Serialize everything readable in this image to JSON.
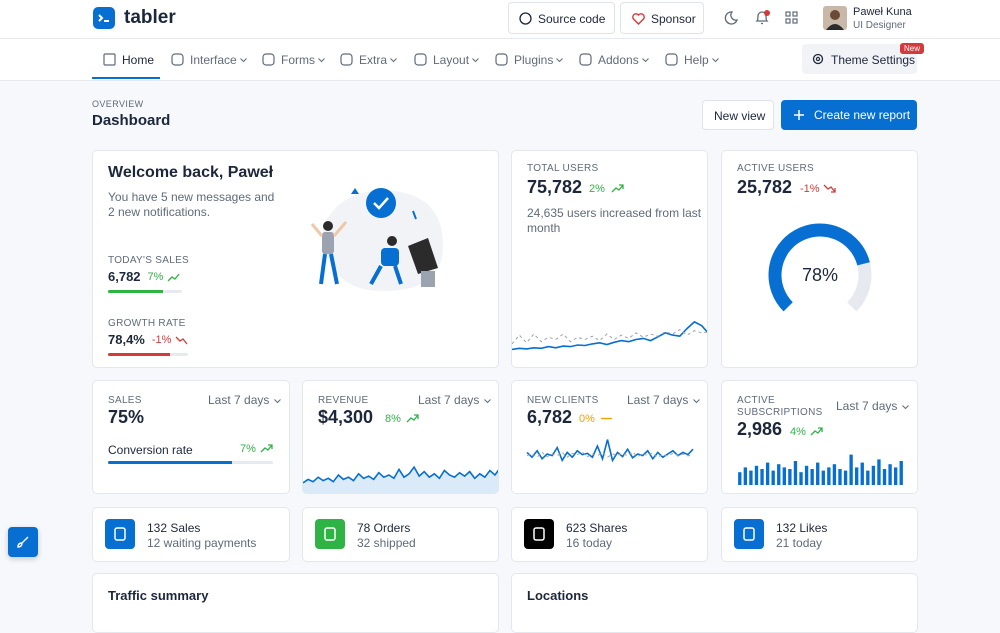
{
  "header": {
    "brand": "tabler",
    "source_code": "Source code",
    "sponsor": "Sponsor",
    "user": {
      "name": "Paweł Kuna",
      "role": "UI Designer"
    }
  },
  "nav": {
    "items": [
      "Home",
      "Interface",
      "Forms",
      "Extra",
      "Layout",
      "Plugins",
      "Addons",
      "Help"
    ],
    "theme_settings": "Theme Settings",
    "theme_badge": "New"
  },
  "page_header": {
    "pretitle": "OVERVIEW",
    "title": "Dashboard",
    "actions": [
      "New view",
      "Create new report"
    ]
  },
  "welcome": {
    "title": "Welcome back, Paweł",
    "text": "You have 5 new messages and 2 new notifications.",
    "metrics": [
      {
        "label": "TODAY'S SALES",
        "value": "6,782",
        "change": "7%",
        "progress": 74,
        "color": "#2fb344"
      },
      {
        "label": "GROWTH RATE",
        "value": "78,4%",
        "change": "-1%",
        "progress": 78,
        "color": "#d63939"
      }
    ]
  },
  "total_users": {
    "label": "TOTAL USERS",
    "value": "75,782",
    "change": "2%",
    "text": "24,635 users increased from last month",
    "chart": {
      "type": "line",
      "ylim": [
        0,
        100
      ],
      "series": [
        {
          "color": "#066fd1",
          "values": [
            12,
            14,
            13,
            15,
            14,
            17,
            15,
            18,
            17,
            20,
            19,
            22,
            24,
            21,
            25,
            28,
            26,
            30,
            32,
            28,
            35,
            42,
            38,
            36,
            50,
            62,
            55,
            40
          ]
        },
        {
          "color": "#9aa3af",
          "dashed": true,
          "values": [
            22,
            38,
            24,
            40,
            26,
            34,
            30,
            40,
            26,
            34,
            30,
            36,
            28,
            40,
            30,
            38,
            32,
            42,
            34,
            40,
            36,
            44,
            40,
            48,
            38,
            46,
            42,
            44
          ]
        }
      ]
    }
  },
  "active_users": {
    "label": "ACTIVE USERS",
    "value": "25,782",
    "change": "-1%",
    "gauge": {
      "value": 78,
      "label": "78%"
    }
  },
  "sales": {
    "label": "SALES",
    "period": "Last 7 days",
    "value": "75%",
    "progress_label": "Conversion rate",
    "change": "7%",
    "progress": 75
  },
  "revenue": {
    "label": "REVENUE",
    "period": "Last 7 days",
    "value": "$4,300",
    "change": "8%",
    "chart": {
      "type": "area",
      "ylim": [
        0,
        100
      ],
      "color": "#066fd1",
      "values": [
        20,
        26,
        22,
        30,
        24,
        28,
        22,
        34,
        26,
        30,
        24,
        36,
        28,
        32,
        26,
        38,
        30,
        34,
        28,
        44,
        30,
        36,
        48,
        32,
        40,
        30,
        36,
        28,
        42,
        34,
        30,
        38,
        32,
        40,
        28,
        36,
        30,
        42,
        34,
        46
      ]
    }
  },
  "new_clients": {
    "label": "NEW CLIENTS",
    "period": "Last 7 days",
    "value": "6,782",
    "change": "0%",
    "chart": {
      "type": "line",
      "ylim": [
        0,
        100
      ],
      "series": [
        {
          "color": "#066fd1",
          "values": [
            55,
            40,
            60,
            35,
            50,
            45,
            70,
            30,
            55,
            40,
            60,
            48,
            52,
            40,
            75,
            35,
            95,
            30,
            55,
            42,
            65,
            38,
            50,
            45,
            60,
            35,
            55,
            40,
            50,
            60,
            45,
            55,
            48,
            65
          ]
        },
        {
          "color": "#9aa3af",
          "dashed": true,
          "values": [
            45,
            50,
            40,
            55,
            42,
            50,
            45,
            55,
            40,
            52,
            48,
            56,
            42,
            50,
            45,
            54,
            40,
            50,
            46,
            52,
            44,
            56,
            42,
            50,
            46,
            54,
            40,
            48,
            44,
            52,
            46,
            50,
            44,
            48
          ]
        }
      ]
    }
  },
  "active_subscriptions": {
    "label": "ACTIVE SUBSCRIPTIONS",
    "period": "Last 7 days",
    "value": "2,986",
    "change": "4%",
    "chart": {
      "type": "bar",
      "ylim": [
        0,
        100
      ],
      "color": "#066fd1",
      "values": [
        40,
        55,
        45,
        60,
        50,
        70,
        45,
        65,
        55,
        50,
        75,
        40,
        60,
        50,
        70,
        45,
        55,
        65,
        50,
        45,
        95,
        55,
        70,
        45,
        60,
        80,
        50,
        65,
        55,
        75
      ]
    }
  },
  "stats": [
    {
      "title": "132 Sales",
      "subtitle": "12 waiting payments",
      "color": "#066fd1"
    },
    {
      "title": "78 Orders",
      "subtitle": "32 shipped",
      "color": "#2fb344"
    },
    {
      "title": "623 Shares",
      "subtitle": "16 today",
      "color": "#000000"
    },
    {
      "title": "132 Likes",
      "subtitle": "21 today",
      "color": "#066fd1"
    }
  ],
  "sections": [
    "Traffic summary",
    "Locations"
  ]
}
